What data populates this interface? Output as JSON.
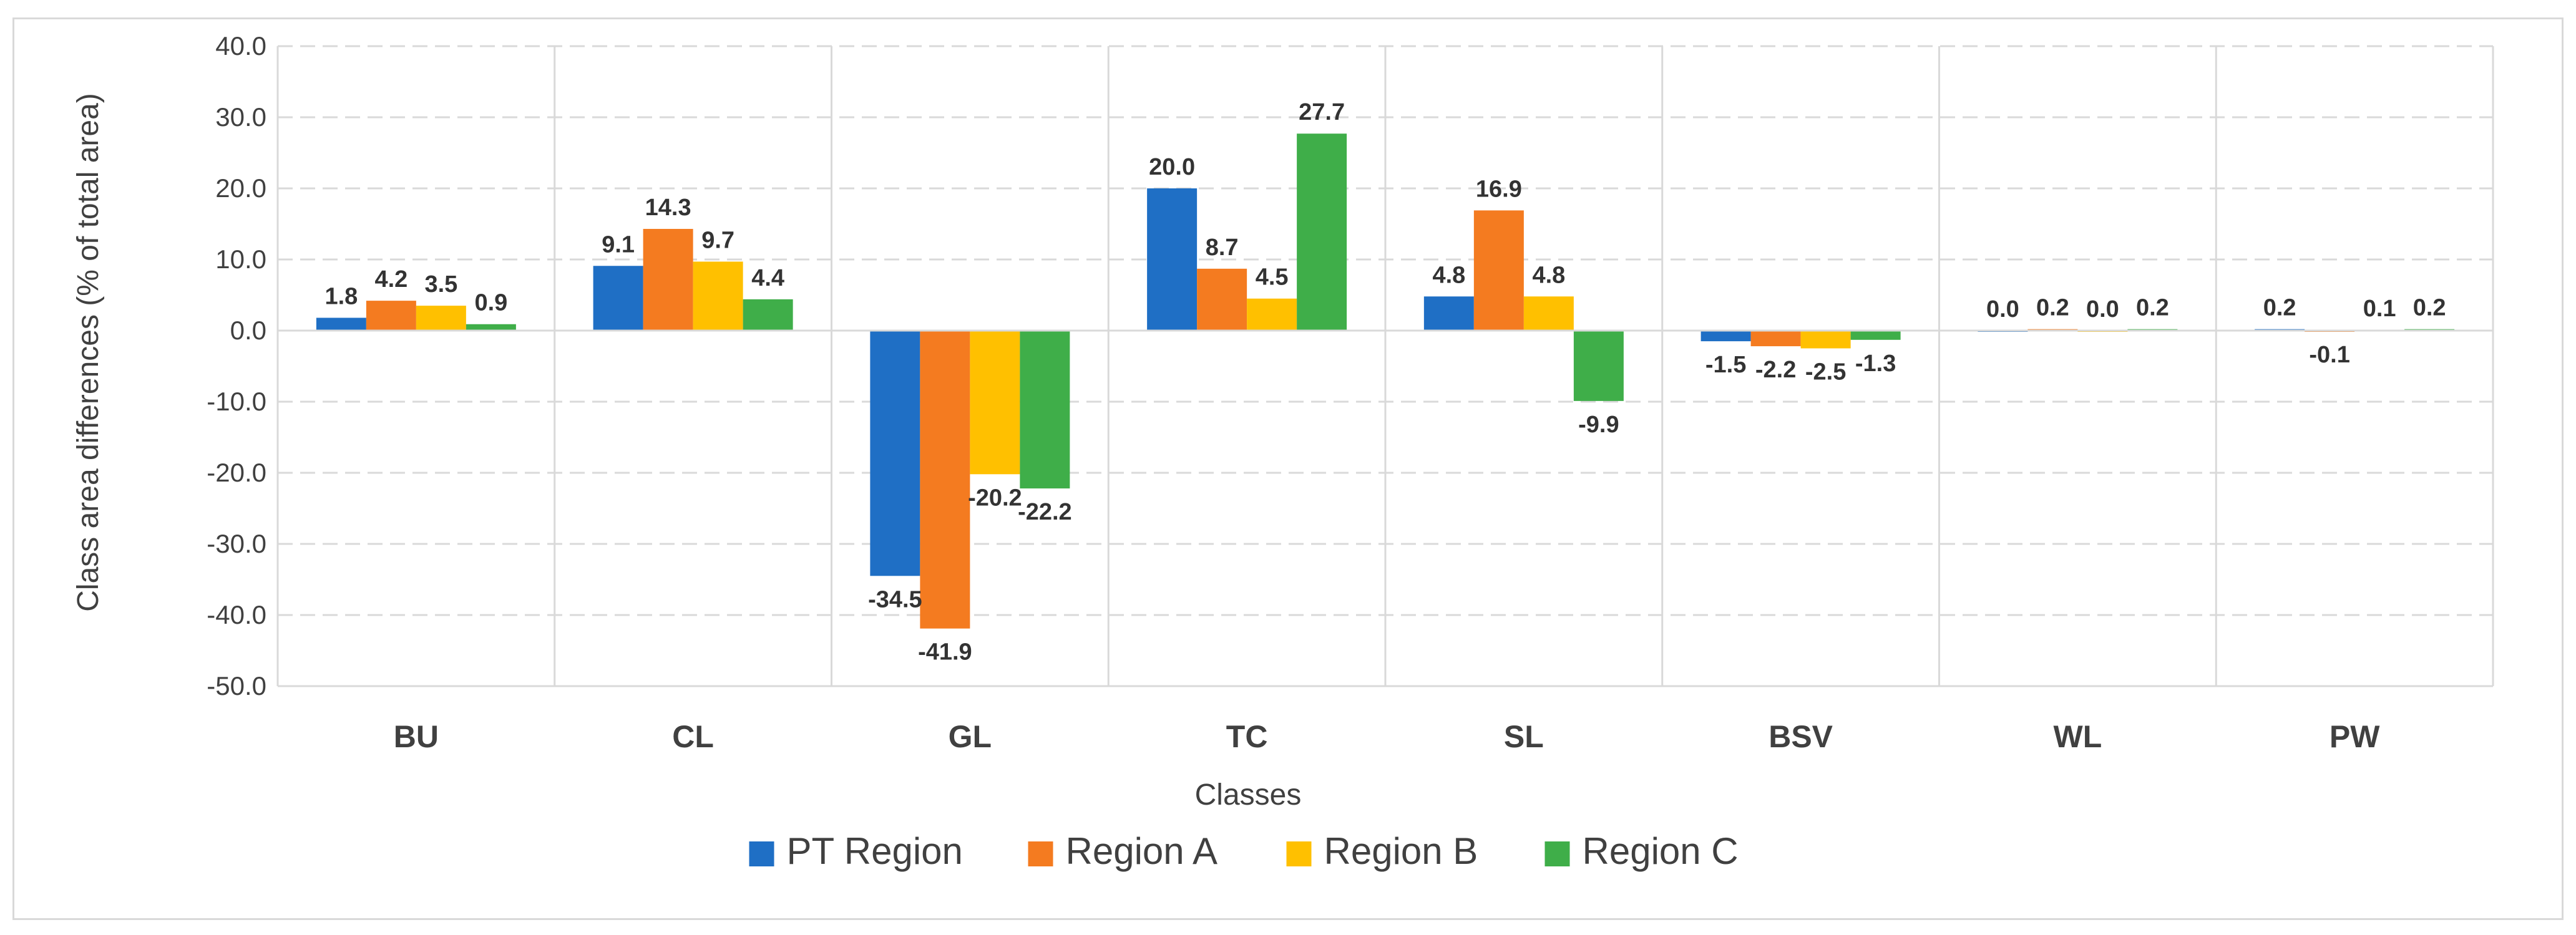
{
  "chart_data": {
    "type": "bar",
    "categories": [
      "BU",
      "CL",
      "GL",
      "TC",
      "SL",
      "BSV",
      "WL",
      "PW"
    ],
    "series": [
      {
        "name": "PT Region",
        "color": "#1f6fc5",
        "values": [
          1.8,
          9.1,
          -34.5,
          20.0,
          4.8,
          -1.5,
          0.0,
          0.2
        ]
      },
      {
        "name": "Region A",
        "color": "#f47b20",
        "values": [
          4.2,
          14.3,
          -41.9,
          8.7,
          16.9,
          -2.2,
          0.2,
          -0.1
        ]
      },
      {
        "name": "Region B",
        "color": "#ffc000",
        "values": [
          3.5,
          9.7,
          -20.2,
          4.5,
          4.8,
          -2.5,
          0.0,
          0.1
        ]
      },
      {
        "name": "Region C",
        "color": "#3fae49",
        "values": [
          0.9,
          4.4,
          -22.2,
          27.7,
          -9.9,
          -1.3,
          0.2,
          0.2
        ]
      }
    ],
    "ylim": [
      -50,
      40
    ],
    "yticks": [
      -50,
      -40,
      -30,
      -20,
      -10,
      0,
      10,
      20,
      30,
      40
    ],
    "ylabel": "Class area differences (% of total area)",
    "xlabel": "Classes",
    "legend": "bottom",
    "grid": "horizontal dashed"
  }
}
